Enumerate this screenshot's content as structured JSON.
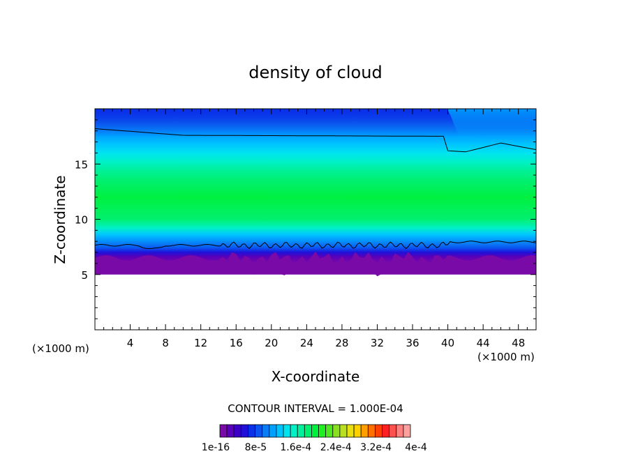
{
  "chart_data": {
    "type": "heatmap",
    "title": "density of cloud",
    "xlabel": "X-coordinate",
    "ylabel": "Z-coordinate",
    "x_unit_left": "(×1000 m)",
    "x_unit_right": "(×1000 m)",
    "xlim": [
      0,
      50
    ],
    "ylim": [
      0,
      20
    ],
    "x_ticks": [
      "4",
      "8",
      "12",
      "16",
      "20",
      "24",
      "28",
      "32",
      "36",
      "40",
      "44",
      "48"
    ],
    "y_ticks": [
      "5",
      "10",
      "15"
    ],
    "contour_interval_text": "CONTOUR INTERVAL = 1.000E-04",
    "colorbar_labels": [
      "1e-16",
      "8e-5",
      "1.6e-4",
      "2.4e-4",
      "3.2e-4",
      "4e-4"
    ],
    "colorbar_colors": [
      "#7a0aa8",
      "#5a00b8",
      "#3a00c8",
      "#2010d8",
      "#0a30e8",
      "#0a55f0",
      "#0a7cf5",
      "#00a0ff",
      "#00c4ff",
      "#00e4f0",
      "#00f0c8",
      "#00f09c",
      "#00f070",
      "#00f040",
      "#20f020",
      "#50e820",
      "#88e020",
      "#b8e020",
      "#e8e010",
      "#ffd000",
      "#ffa000",
      "#ff7000",
      "#ff4000",
      "#ff2020",
      "#ff5050",
      "#ff8080",
      "#ffa0a0"
    ],
    "field_profile": [
      {
        "z": 5.3,
        "level": 0
      },
      {
        "z": 6.0,
        "level": 0
      },
      {
        "z": 6.6,
        "level": 1
      },
      {
        "z": 7.0,
        "level": 3
      },
      {
        "z": 7.4,
        "level": 5
      },
      {
        "z": 7.8,
        "level": 6
      },
      {
        "z": 8.2,
        "level": 7
      },
      {
        "z": 8.6,
        "level": 8
      },
      {
        "z": 9.2,
        "level": 10
      },
      {
        "z": 10.0,
        "level": 12
      },
      {
        "z": 12.0,
        "level": 13
      },
      {
        "z": 13.5,
        "level": 12
      },
      {
        "z": 14.5,
        "level": 11
      },
      {
        "z": 15.2,
        "level": 10
      },
      {
        "z": 16.0,
        "level": 9
      },
      {
        "z": 16.8,
        "level": 8
      },
      {
        "z": 17.6,
        "level": 7
      },
      {
        "z": 18.6,
        "level": 6
      },
      {
        "z": 19.4,
        "level": 5
      },
      {
        "z": 20.0,
        "level": 4
      }
    ]
  }
}
